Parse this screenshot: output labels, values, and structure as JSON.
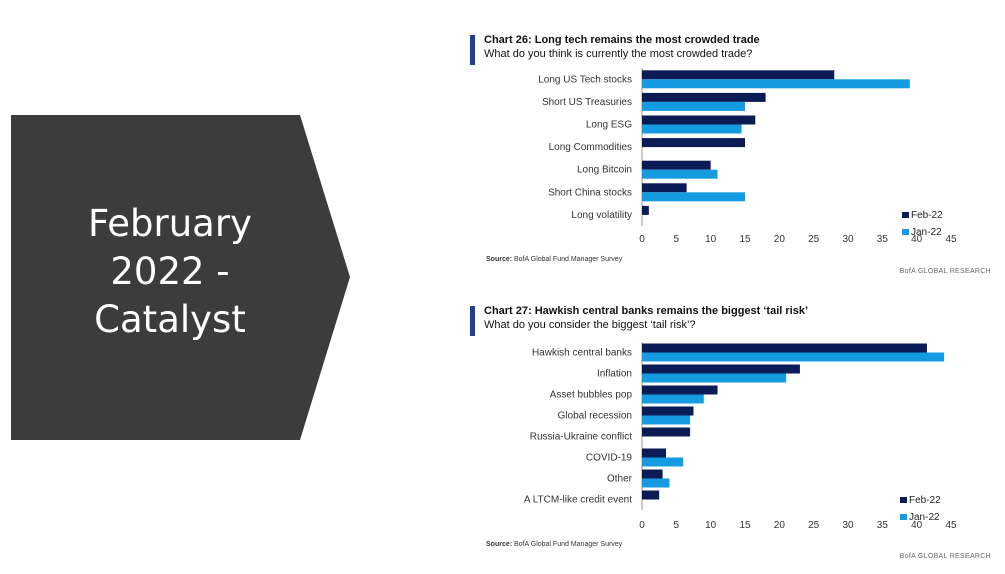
{
  "slide": {
    "title": "February 2022 - Catalyst"
  },
  "colors": {
    "arrow_fill": "#3c3c3c",
    "feb_series": "#0b1b55",
    "jan_series": "#159ce0",
    "accent": "#1f3f8f"
  },
  "chart_data": [
    {
      "type": "bar",
      "orientation": "horizontal",
      "title": "Chart 26: Long tech remains the most crowded trade",
      "subtitle": "What do you think is currently the most crowded trade?",
      "categories": [
        "Long US Tech stocks",
        "Short US Treasuries",
        "Long ESG",
        "Long Commodities",
        "Long Bitcoin",
        "Short China  stocks",
        "Long volatility"
      ],
      "series": [
        {
          "name": "Feb-22",
          "color": "#0b1b55",
          "values": [
            28,
            18,
            16.5,
            15,
            10,
            6.5,
            1
          ]
        },
        {
          "name": "Jan-22",
          "color": "#159ce0",
          "values": [
            39,
            15,
            14.5,
            null,
            11,
            15,
            null
          ]
        }
      ],
      "xlim": [
        0,
        45
      ],
      "xticks": [
        "0",
        "5",
        "10",
        "15",
        "20",
        "25",
        "30",
        "35",
        "40",
        "45"
      ],
      "legend_position": "right",
      "source_label": "Source:",
      "source_text": "BofA Global Fund Manager Survey",
      "credit": "BofA GLOBAL RESEARCH"
    },
    {
      "type": "bar",
      "orientation": "horizontal",
      "title": "Chart 27: Hawkish central banks remains the biggest ‘tail risk’",
      "subtitle": "What do you consider the biggest ‘tail risk’?",
      "categories": [
        "Hawkish central banks",
        "Inflation",
        "Asset bubbles pop",
        "Global recession",
        "Russia-Ukraine conflict",
        "COVID-19",
        "Other",
        "A LTCM-like credit event"
      ],
      "series": [
        {
          "name": "Feb-22",
          "color": "#0b1b55",
          "values": [
            41.5,
            23,
            11,
            7.5,
            7,
            3.5,
            3,
            2.5
          ]
        },
        {
          "name": "Jan-22",
          "color": "#159ce0",
          "values": [
            44,
            21,
            9,
            7,
            null,
            6,
            4,
            null
          ]
        }
      ],
      "xlim": [
        0,
        45
      ],
      "xticks": [
        "0",
        "5",
        "10",
        "15",
        "20",
        "25",
        "30",
        "35",
        "40",
        "45"
      ],
      "legend_position": "right",
      "source_label": "Source:",
      "source_text": "BofA Global Fund Manager Survey",
      "credit": "BofA GLOBAL RESEARCH"
    }
  ]
}
